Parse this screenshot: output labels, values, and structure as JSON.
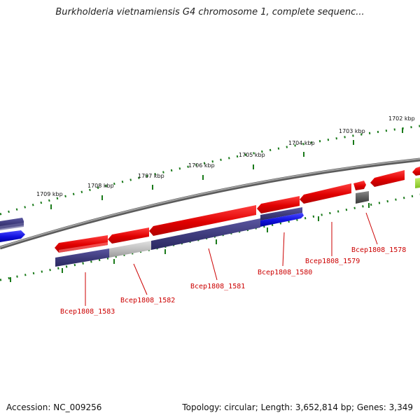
{
  "title": "Burkholderia vietnamiensis G4 chromosome 1, complete sequenc...",
  "footer": {
    "accession": "Accession: NC_009256",
    "info": "Topology: circular; Length: 3,652,814 bp; Genes: 3,349"
  },
  "ruler_labels": [
    "1709 kbp",
    "1708 kbp",
    "1707 kbp",
    "1706 kbp",
    "1705 kbp",
    "1704 kbp",
    "1703 kbp",
    "1702 kbp"
  ],
  "gene_labels": [
    "Bcep1808_1583",
    "Bcep1808_1582",
    "Bcep1808_1581",
    "Bcep1808_1580",
    "Bcep1808_1579",
    "Bcep1808_1578"
  ],
  "colors": {
    "forward_gene": "#e8000b",
    "reverse_gene": "#3d3a7a",
    "backbone": "#7a7a7a",
    "ruler_tick": "#1a7a1a",
    "label_text": "#cc0000",
    "blue_gene": "#1010dd",
    "gray_gene": "#bcbcbc"
  }
}
